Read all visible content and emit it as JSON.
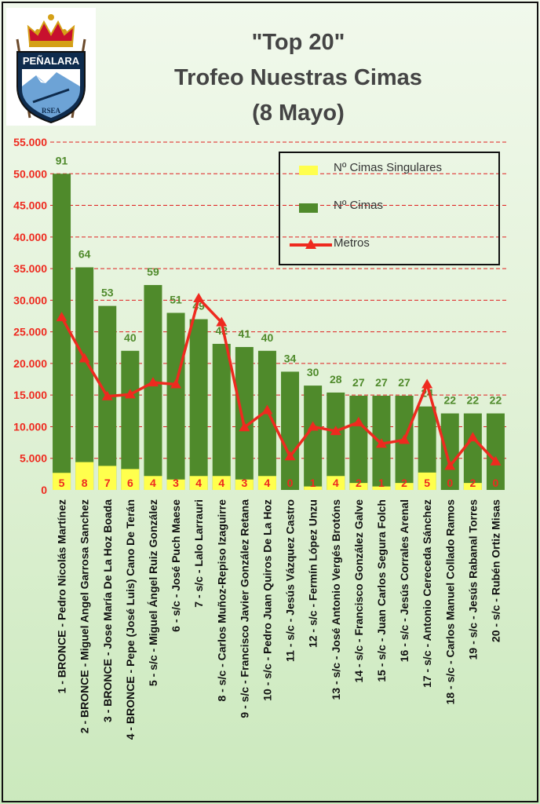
{
  "logo": {
    "text_top": "PEÑALARA",
    "text_bottom": "RSEA"
  },
  "header": {
    "line1": "\"Top 20\"",
    "line2": "Trofeo Nuestras Cimas",
    "line3": "(8 Mayo)"
  },
  "legend": {
    "items": [
      {
        "label": "Nº Cimas Singulares",
        "color": "#ffff4d",
        "kind": "box"
      },
      {
        "label": "Nº Cimas",
        "color": "#4f8a2b",
        "kind": "box"
      },
      {
        "label": "Metros",
        "color": "#ee2a1f",
        "kind": "line"
      }
    ]
  },
  "chart_data": {
    "type": "bar",
    "ylim": [
      0,
      55000
    ],
    "yticks": [
      "0",
      "5.000",
      "10.000",
      "15.000",
      "20.000",
      "25.000",
      "30.000",
      "35.000",
      "40.000",
      "45.000",
      "50.000",
      "55.000"
    ],
    "grid": "dashed-red",
    "colors": {
      "cimas": "#4f8a2b",
      "singulares": "#ffff4d",
      "metros": "#ee2a1f",
      "cimas_label": "#4f8a2b",
      "sing_label": "#ee2a1f",
      "axis_text": "#ee2a1f"
    },
    "categories": [
      "1 - BRONCE - Pedro Nicolás Martínez",
      "2 - BRONCE - Miguel Angel Garrosa Sanchez",
      "3 - BRONCE - Jose María De La Hoz Boada",
      "4 - BRONCE - Pepe (José Luis) Cano De Terán",
      "5 - s/c - Miguel Ángel Ruiz González",
      "6 - s/c - José Puch Maese",
      "7 - s/c - Lalo Larrauri",
      "8 - s/c - Carlos Muñoz-Repiso Izaguirre",
      "9 - s/c - Francisco Javier González Retana",
      "10 - s/c - Pedro Juan Quiros De La Hoz",
      "11 - s/c - Jesús Vázquez Castro",
      "12 - s/c - Fermín López Unzu",
      "13 - s/c - José Antonio Vergés Brotóns",
      "14 - s/c - Francisco González Galve",
      "15 - s/c - Juan Carlos Segura Folch",
      "16 - s/c - Jesús Corrales Arenal",
      "17 - s/c - Antonio Cereceda Sánchez",
      "18 - s/c - Carlos Manuel Collado Ramos",
      "19 - s/c - Jesús Rabanal Torres",
      "20 - s/c - Rubén Ortiz Misas"
    ],
    "series": [
      {
        "name": "Nº Cimas Singulares",
        "values": [
          5,
          8,
          7,
          6,
          4,
          3,
          4,
          4,
          3,
          4,
          0,
          1,
          4,
          2,
          1,
          2,
          5,
          0,
          2,
          0
        ],
        "bar_heights": [
          2700,
          4400,
          3800,
          3300,
          2200,
          1650,
          2200,
          2200,
          1650,
          2200,
          0,
          550,
          2200,
          1100,
          550,
          1100,
          2750,
          0,
          1100,
          0
        ]
      },
      {
        "name": "Nº Cimas",
        "values": [
          91,
          64,
          53,
          40,
          59,
          51,
          49,
          42,
          41,
          40,
          34,
          30,
          28,
          27,
          27,
          27,
          24,
          22,
          22,
          22
        ],
        "bar_heights": [
          50000,
          35200,
          29100,
          22000,
          32400,
          28000,
          27000,
          23100,
          22600,
          22000,
          18700,
          16500,
          15400,
          14900,
          14900,
          14900,
          13200,
          12100,
          12100,
          12100
        ]
      },
      {
        "name": "Metros",
        "values": [
          27300,
          20800,
          14800,
          15100,
          17000,
          16700,
          30300,
          26500,
          9900,
          12600,
          5300,
          10000,
          9300,
          10700,
          7300,
          7900,
          16700,
          3800,
          8300,
          4500
        ]
      }
    ]
  }
}
